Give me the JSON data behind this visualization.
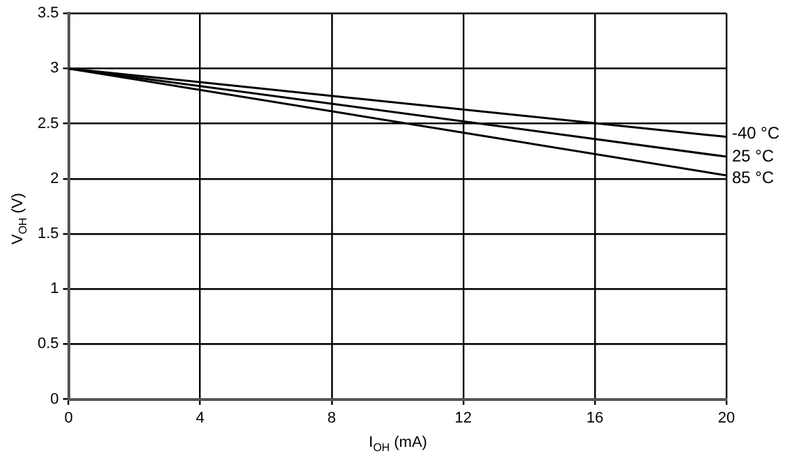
{
  "chart_data": {
    "type": "line",
    "xlabel": "I$_{OH}$ (mA)",
    "ylabel": "V$_{OH}$ (V)",
    "x": [
      0,
      20
    ],
    "series": [
      {
        "name": "-40 °C",
        "color": "#000000",
        "values": [
          3,
          2.38
        ]
      },
      {
        "name": "25 °C",
        "color": "#000000",
        "values": [
          3,
          2.2
        ]
      },
      {
        "name": "85 °C",
        "color": "#000000",
        "values": [
          3,
          2.03
        ]
      }
    ],
    "xlim": [
      0,
      20
    ],
    "xticks": [
      0,
      4,
      8,
      12,
      16,
      20
    ],
    "ylim": [
      0,
      3.5
    ],
    "yticks": [
      0,
      0.5,
      1,
      1.5,
      2,
      2.5,
      3,
      3.5
    ],
    "grid": true,
    "legend": false,
    "marker": "none",
    "line_style": "solid"
  }
}
